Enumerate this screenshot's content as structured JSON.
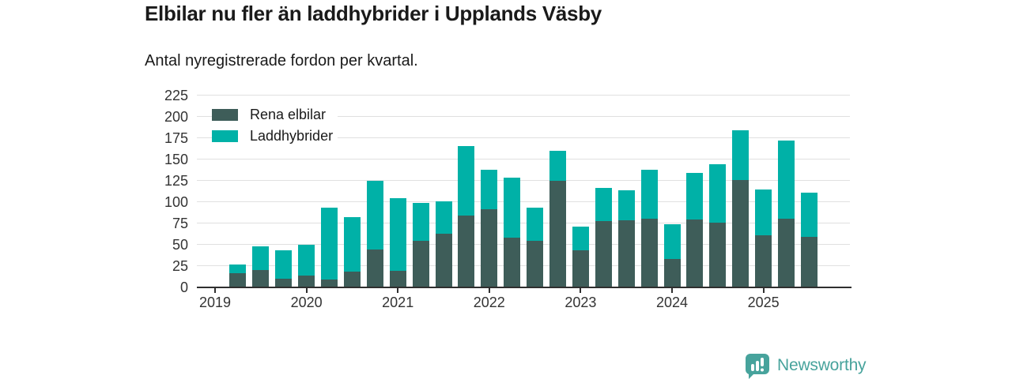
{
  "header": {
    "title": "Elbilar nu fler än laddhybrider i Upplands Väsby",
    "subtitle": "Antal nyregistrerade fordon per kvartal."
  },
  "legend": {
    "items": [
      {
        "label": "Rena elbilar",
        "color_key": "elbilar"
      },
      {
        "label": "Laddhybrider",
        "color_key": "laddhybrider"
      }
    ]
  },
  "colors": {
    "elbilar": "#3E5D59",
    "laddhybrider": "#00B1A7",
    "grid": "#e0e0e0",
    "axis": "#2f2f2f",
    "tick_text": "#333333",
    "brand": "#47A39C"
  },
  "chart_data": {
    "type": "bar",
    "stacked": true,
    "title": "Elbilar nu fler än laddhybrider i Upplands Väsby",
    "subtitle": "Antal nyregistrerade fordon per kvartal.",
    "xlabel": "",
    "ylabel": "",
    "ylim": [
      0,
      225
    ],
    "grid": true,
    "legend_position": "inside-top-left",
    "y_ticks": [
      0,
      25,
      50,
      75,
      100,
      125,
      150,
      175,
      200,
      225
    ],
    "x_ticks": [
      "2019",
      "2020",
      "2021",
      "2022",
      "2023",
      "2024",
      "2025"
    ],
    "categories": [
      "2019 Q2",
      "2019 Q3",
      "2019 Q4",
      "2020 Q1",
      "2020 Q2",
      "2020 Q3",
      "2020 Q4",
      "2021 Q1",
      "2021 Q2",
      "2021 Q3",
      "2021 Q4",
      "2022 Q1",
      "2022 Q2",
      "2022 Q3",
      "2022 Q4",
      "2023 Q1",
      "2023 Q2",
      "2023 Q3",
      "2023 Q4",
      "2024 Q1",
      "2024 Q2",
      "2024 Q3",
      "2024 Q4",
      "2025 Q1",
      "2025 Q2",
      "2025 Q3"
    ],
    "series": [
      {
        "name": "Rena elbilar",
        "values": [
          16,
          20,
          10,
          13,
          9,
          18,
          44,
          19,
          54,
          63,
          84,
          91,
          58,
          54,
          125,
          43,
          77,
          78,
          80,
          33,
          79,
          76,
          126,
          61,
          80,
          59
        ]
      },
      {
        "name": "Laddhybrider",
        "values": [
          10,
          28,
          33,
          37,
          84,
          64,
          81,
          85,
          45,
          38,
          82,
          47,
          70,
          39,
          35,
          28,
          39,
          36,
          58,
          41,
          55,
          68,
          58,
          54,
          92,
          52
        ]
      }
    ]
  },
  "footer": {
    "brand": "Newsworthy"
  }
}
